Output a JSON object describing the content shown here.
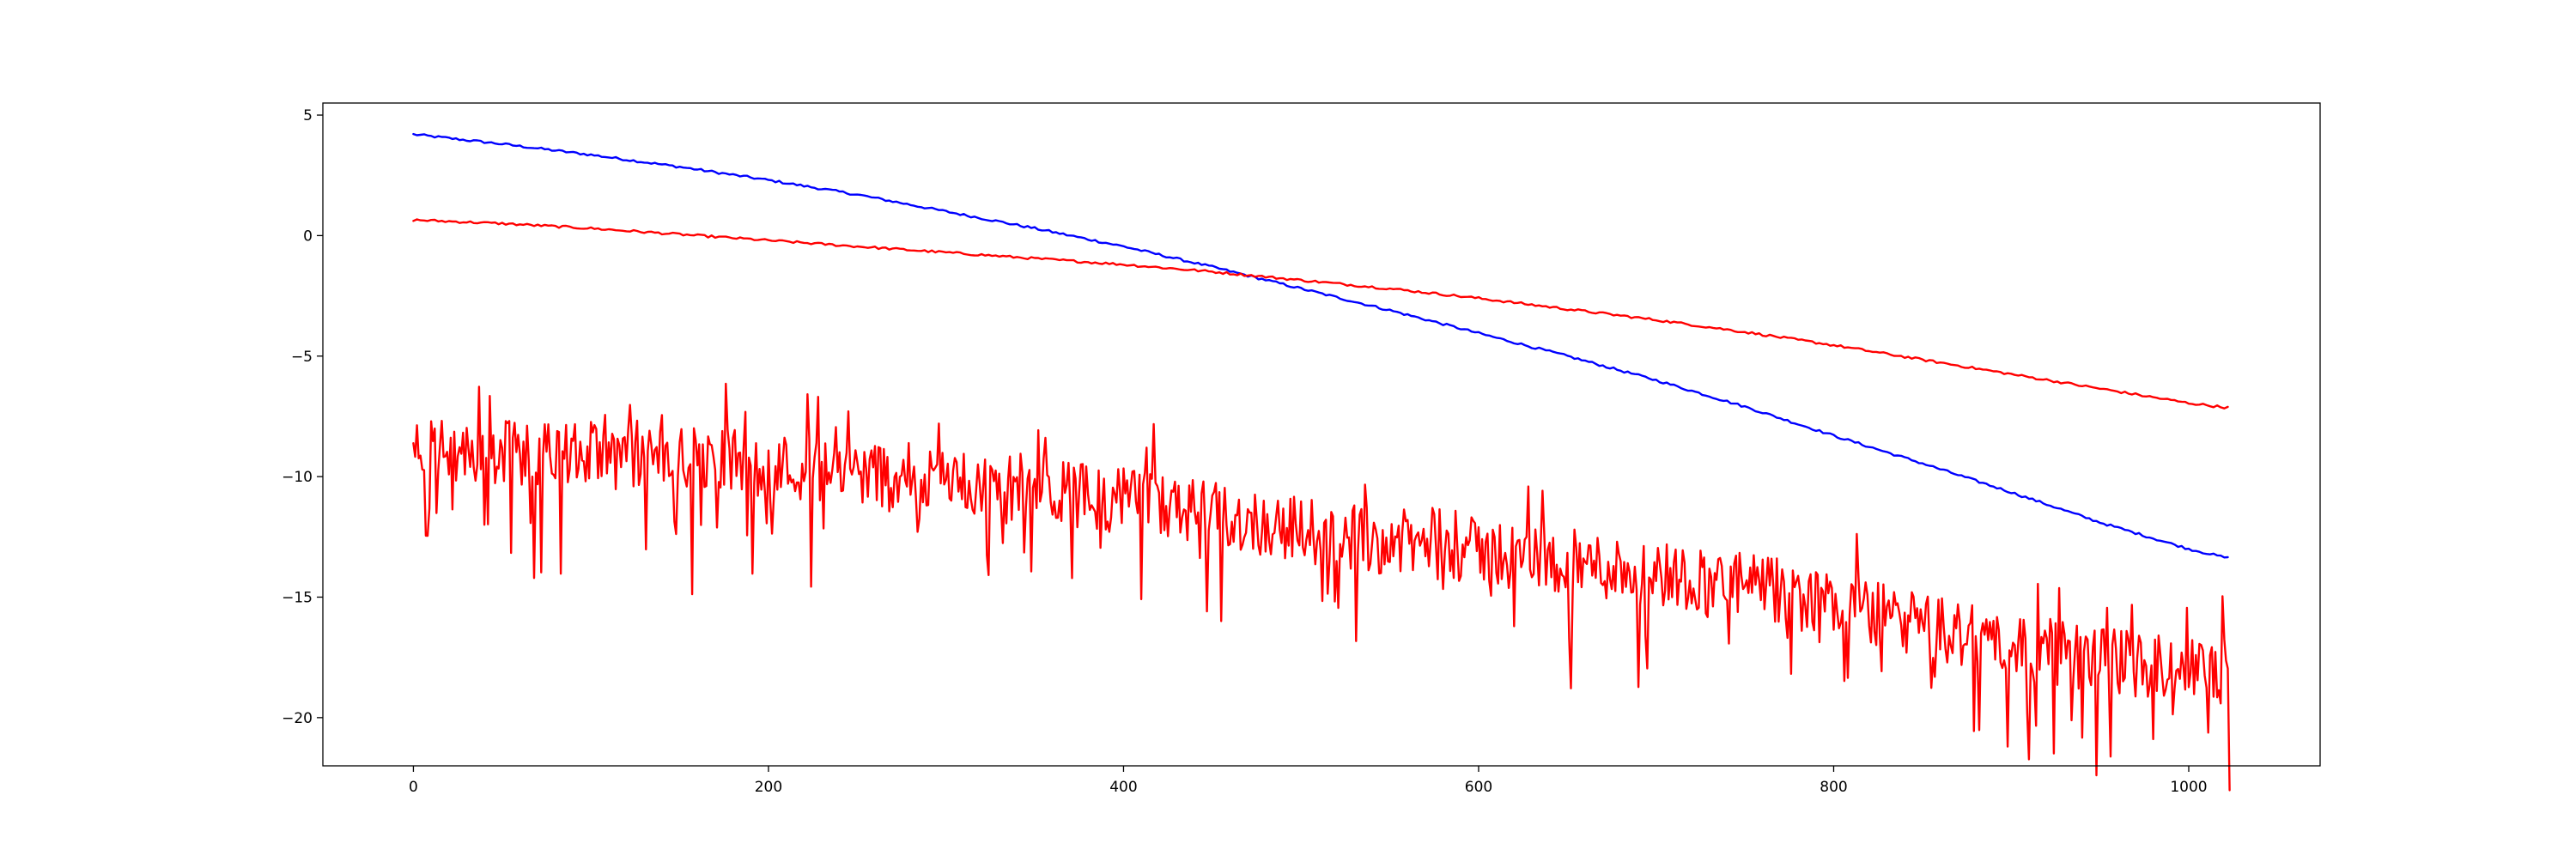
{
  "chart_data": {
    "type": "line",
    "title": "",
    "xlabel": "",
    "ylabel": "",
    "xlim": [
      -51,
      1074
    ],
    "ylim": [
      -22,
      5.5
    ],
    "grid": false,
    "legend": "none",
    "x_ticks": [
      {
        "value": 0,
        "label": "0"
      },
      {
        "value": 200,
        "label": "200"
      },
      {
        "value": 400,
        "label": "400"
      },
      {
        "value": 600,
        "label": "600"
      },
      {
        "value": 800,
        "label": "800"
      },
      {
        "value": 1000,
        "label": "1000"
      }
    ],
    "y_ticks": [
      {
        "value": 5,
        "label": "5"
      },
      {
        "value": 0,
        "label": "0"
      },
      {
        "value": -5,
        "label": "−5"
      },
      {
        "value": -10,
        "label": "−10"
      },
      {
        "value": -15,
        "label": "−15"
      },
      {
        "value": -20,
        "label": "−20"
      }
    ],
    "series": [
      {
        "color": "#0000ff",
        "style": "smooth",
        "x": [
          0,
          50,
          100,
          150,
          200,
          250,
          300,
          350,
          400,
          450,
          500,
          550,
          600,
          650,
          700,
          750,
          800,
          850,
          900,
          950,
          1000,
          1023
        ],
        "y": [
          4.2,
          3.8,
          3.35,
          2.85,
          2.3,
          1.7,
          1.0,
          0.3,
          -0.45,
          -1.3,
          -2.2,
          -3.1,
          -4.05,
          -5.0,
          -6.0,
          -7.1,
          -8.3,
          -9.45,
          -10.65,
          -11.9,
          -13.0,
          -13.4
        ]
      },
      {
        "color": "#ff0000",
        "style": "smooth",
        "x": [
          0,
          50,
          100,
          150,
          200,
          250,
          300,
          350,
          400,
          450,
          500,
          550,
          600,
          650,
          700,
          750,
          800,
          850,
          900,
          950,
          1000,
          1023
        ],
        "y": [
          0.65,
          0.5,
          0.3,
          0.05,
          -0.2,
          -0.45,
          -0.7,
          -0.95,
          -1.2,
          -1.5,
          -1.85,
          -2.2,
          -2.6,
          -3.05,
          -3.5,
          -4.0,
          -4.55,
          -5.15,
          -5.75,
          -6.35,
          -6.95,
          -7.15
        ]
      },
      {
        "color": "#ff0000",
        "style": "noisy",
        "x": [
          0,
          50,
          100,
          150,
          200,
          250,
          300,
          350,
          400,
          450,
          500,
          550,
          600,
          650,
          700,
          750,
          800,
          850,
          900,
          950,
          1000,
          1023
        ],
        "y": [
          -9.0,
          -9.0,
          -9.1,
          -9.3,
          -9.55,
          -9.8,
          -10.1,
          -10.5,
          -11.0,
          -11.6,
          -12.2,
          -12.7,
          -13.1,
          -13.55,
          -14.0,
          -14.5,
          -15.3,
          -16.2,
          -17.0,
          -17.6,
          -18.0,
          -18.2
        ]
      }
    ]
  }
}
